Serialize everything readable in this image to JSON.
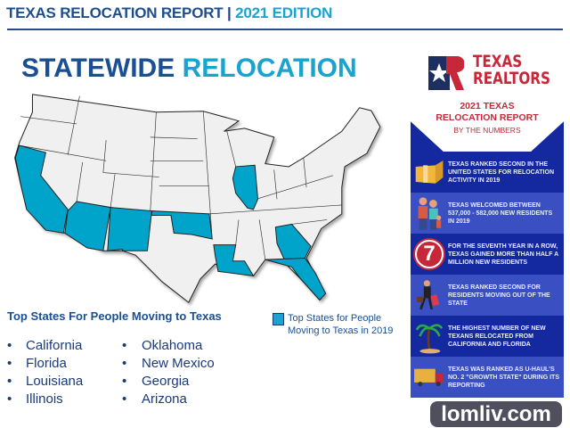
{
  "header": {
    "title": "TEXAS RELOCATION REPORT",
    "separator": "|",
    "edition": "2021 EDITION"
  },
  "main": {
    "title_part1": "STATEWIDE",
    "title_part2": "RELOCATION",
    "highlight_color": "#1aa3cf",
    "highlighted_states": [
      "California",
      "Arizona",
      "New Mexico",
      "Oklahoma",
      "Illinois",
      "Louisiana",
      "Georgia",
      "Florida"
    ],
    "list_heading": "Top States For People Moving to Texas",
    "list_col1": [
      "California",
      "Florida",
      "Louisiana",
      "Illinois"
    ],
    "list_col2": [
      "Oklahoma",
      "New Mexico",
      "Georgia",
      "Arizona"
    ],
    "legend_label": "Top States for People Moving to Texas in 2019"
  },
  "sidebar": {
    "logo_line1": "TEXAS",
    "logo_line2": "REALTORS",
    "report_title_line1": "2021 TEXAS",
    "report_title_line2": "RELOCATION REPORT",
    "report_subtitle": "BY THE NUMBERS",
    "facts": [
      {
        "icon": "box-icon",
        "text": "TEXAS RANKED SECOND IN THE UNITED STATES FOR RELOCATION ACTIVITY IN 2019"
      },
      {
        "icon": "family-icon",
        "text": "TEXAS WELCOMED BETWEEN 537,000 - 582,000 NEW RESIDENTS IN 2019"
      },
      {
        "icon": "seven-badge-icon",
        "badge": "7",
        "text": "FOR THE SEVENTH YEAR IN A ROW, TEXAS GAINED MORE THAN HALF A MILLION NEW RESIDENTS"
      },
      {
        "icon": "traveler-icon",
        "text": "TEXAS RANKED SECOND FOR RESIDENTS MOVING OUT OF THE STATE"
      },
      {
        "icon": "palm-tree-icon",
        "text": "THE HIGHEST NUMBER OF NEW TEXANS RELOCATED FROM CALIFORNIA AND FLORIDA"
      },
      {
        "icon": "truck-icon",
        "text": "TEXAS WAS RANKED AS U-HAUL'S NO. 2 \"GROWTH STATE\" DURING ITS REPORTING"
      }
    ]
  },
  "watermark": "lomliv.com"
}
